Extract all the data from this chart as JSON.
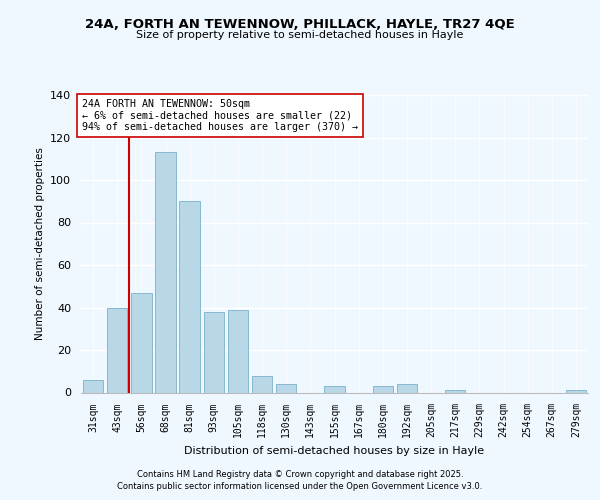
{
  "title": "24A, FORTH AN TEWENNOW, PHILLACK, HAYLE, TR27 4QE",
  "subtitle": "Size of property relative to semi-detached houses in Hayle",
  "xlabel": "Distribution of semi-detached houses by size in Hayle",
  "ylabel": "Number of semi-detached properties",
  "categories": [
    "31sqm",
    "43sqm",
    "56sqm",
    "68sqm",
    "81sqm",
    "93sqm",
    "105sqm",
    "118sqm",
    "130sqm",
    "143sqm",
    "155sqm",
    "167sqm",
    "180sqm",
    "192sqm",
    "205sqm",
    "217sqm",
    "229sqm",
    "242sqm",
    "254sqm",
    "267sqm",
    "279sqm"
  ],
  "values": [
    6,
    40,
    47,
    113,
    90,
    38,
    39,
    8,
    4,
    0,
    3,
    0,
    3,
    4,
    0,
    1,
    0,
    0,
    0,
    0,
    1
  ],
  "bar_color": "#b8d8e8",
  "bar_edge_color": "#7ab0cc",
  "vline_x_index": 1.5,
  "vline_color": "#cc0000",
  "annotation_text": "24A FORTH AN TEWENNOW: 50sqm\n← 6% of semi-detached houses are smaller (22)\n94% of semi-detached houses are larger (370) →",
  "annotation_box_color": "#ffffff",
  "annotation_box_edge": "#cc0000",
  "ylim": [
    0,
    140
  ],
  "yticks": [
    0,
    20,
    40,
    60,
    80,
    100,
    120,
    140
  ],
  "background_color": "#f0f8ff",
  "footer_line1": "Contains HM Land Registry data © Crown copyright and database right 2025.",
  "footer_line2": "Contains public sector information licensed under the Open Government Licence v3.0."
}
